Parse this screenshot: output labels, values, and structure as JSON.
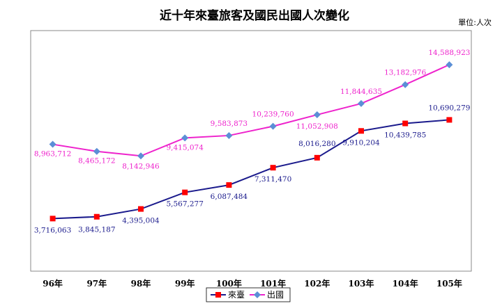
{
  "chart_data": {
    "type": "line",
    "title": "近十年來臺旅客及國民出國人次變化",
    "unit_label": "單位:人次",
    "categories": [
      "96年",
      "97年",
      "98年",
      "99年",
      "100年",
      "101年",
      "102年",
      "103年",
      "104年",
      "105年"
    ],
    "ylim": [
      0,
      17000000
    ],
    "grid": false,
    "legend_position": "bottom",
    "series": [
      {
        "name": "來臺",
        "color": "#1a1a8c",
        "marker_color": "#ff0000",
        "marker": "square",
        "values": [
          3716063,
          3845187,
          4395004,
          5567277,
          6087484,
          7311470,
          8016280,
          9910204,
          10439785,
          10690279
        ],
        "labels": [
          "3,716,063",
          "3,845,187",
          "4,395,004",
          "5,567,277",
          "6,087,484",
          "7,311,470",
          "8,016,280",
          "9,910,204",
          "10,439,785",
          "10,690,279"
        ]
      },
      {
        "name": "出國",
        "color": "#ee22cc",
        "marker_color": "#5b8fd6",
        "marker": "diamond",
        "values": [
          8963712,
          8465172,
          8142946,
          9415074,
          9583873,
          10239760,
          11052908,
          11844635,
          13182976,
          14588923
        ],
        "labels": [
          "8,963,712",
          "8,465,172",
          "8,142,946",
          "9,415,074",
          "9,583,873",
          "10,239,760",
          "11,052,908",
          "11,844,635",
          "13,182,976",
          "14,588,923"
        ]
      }
    ]
  }
}
